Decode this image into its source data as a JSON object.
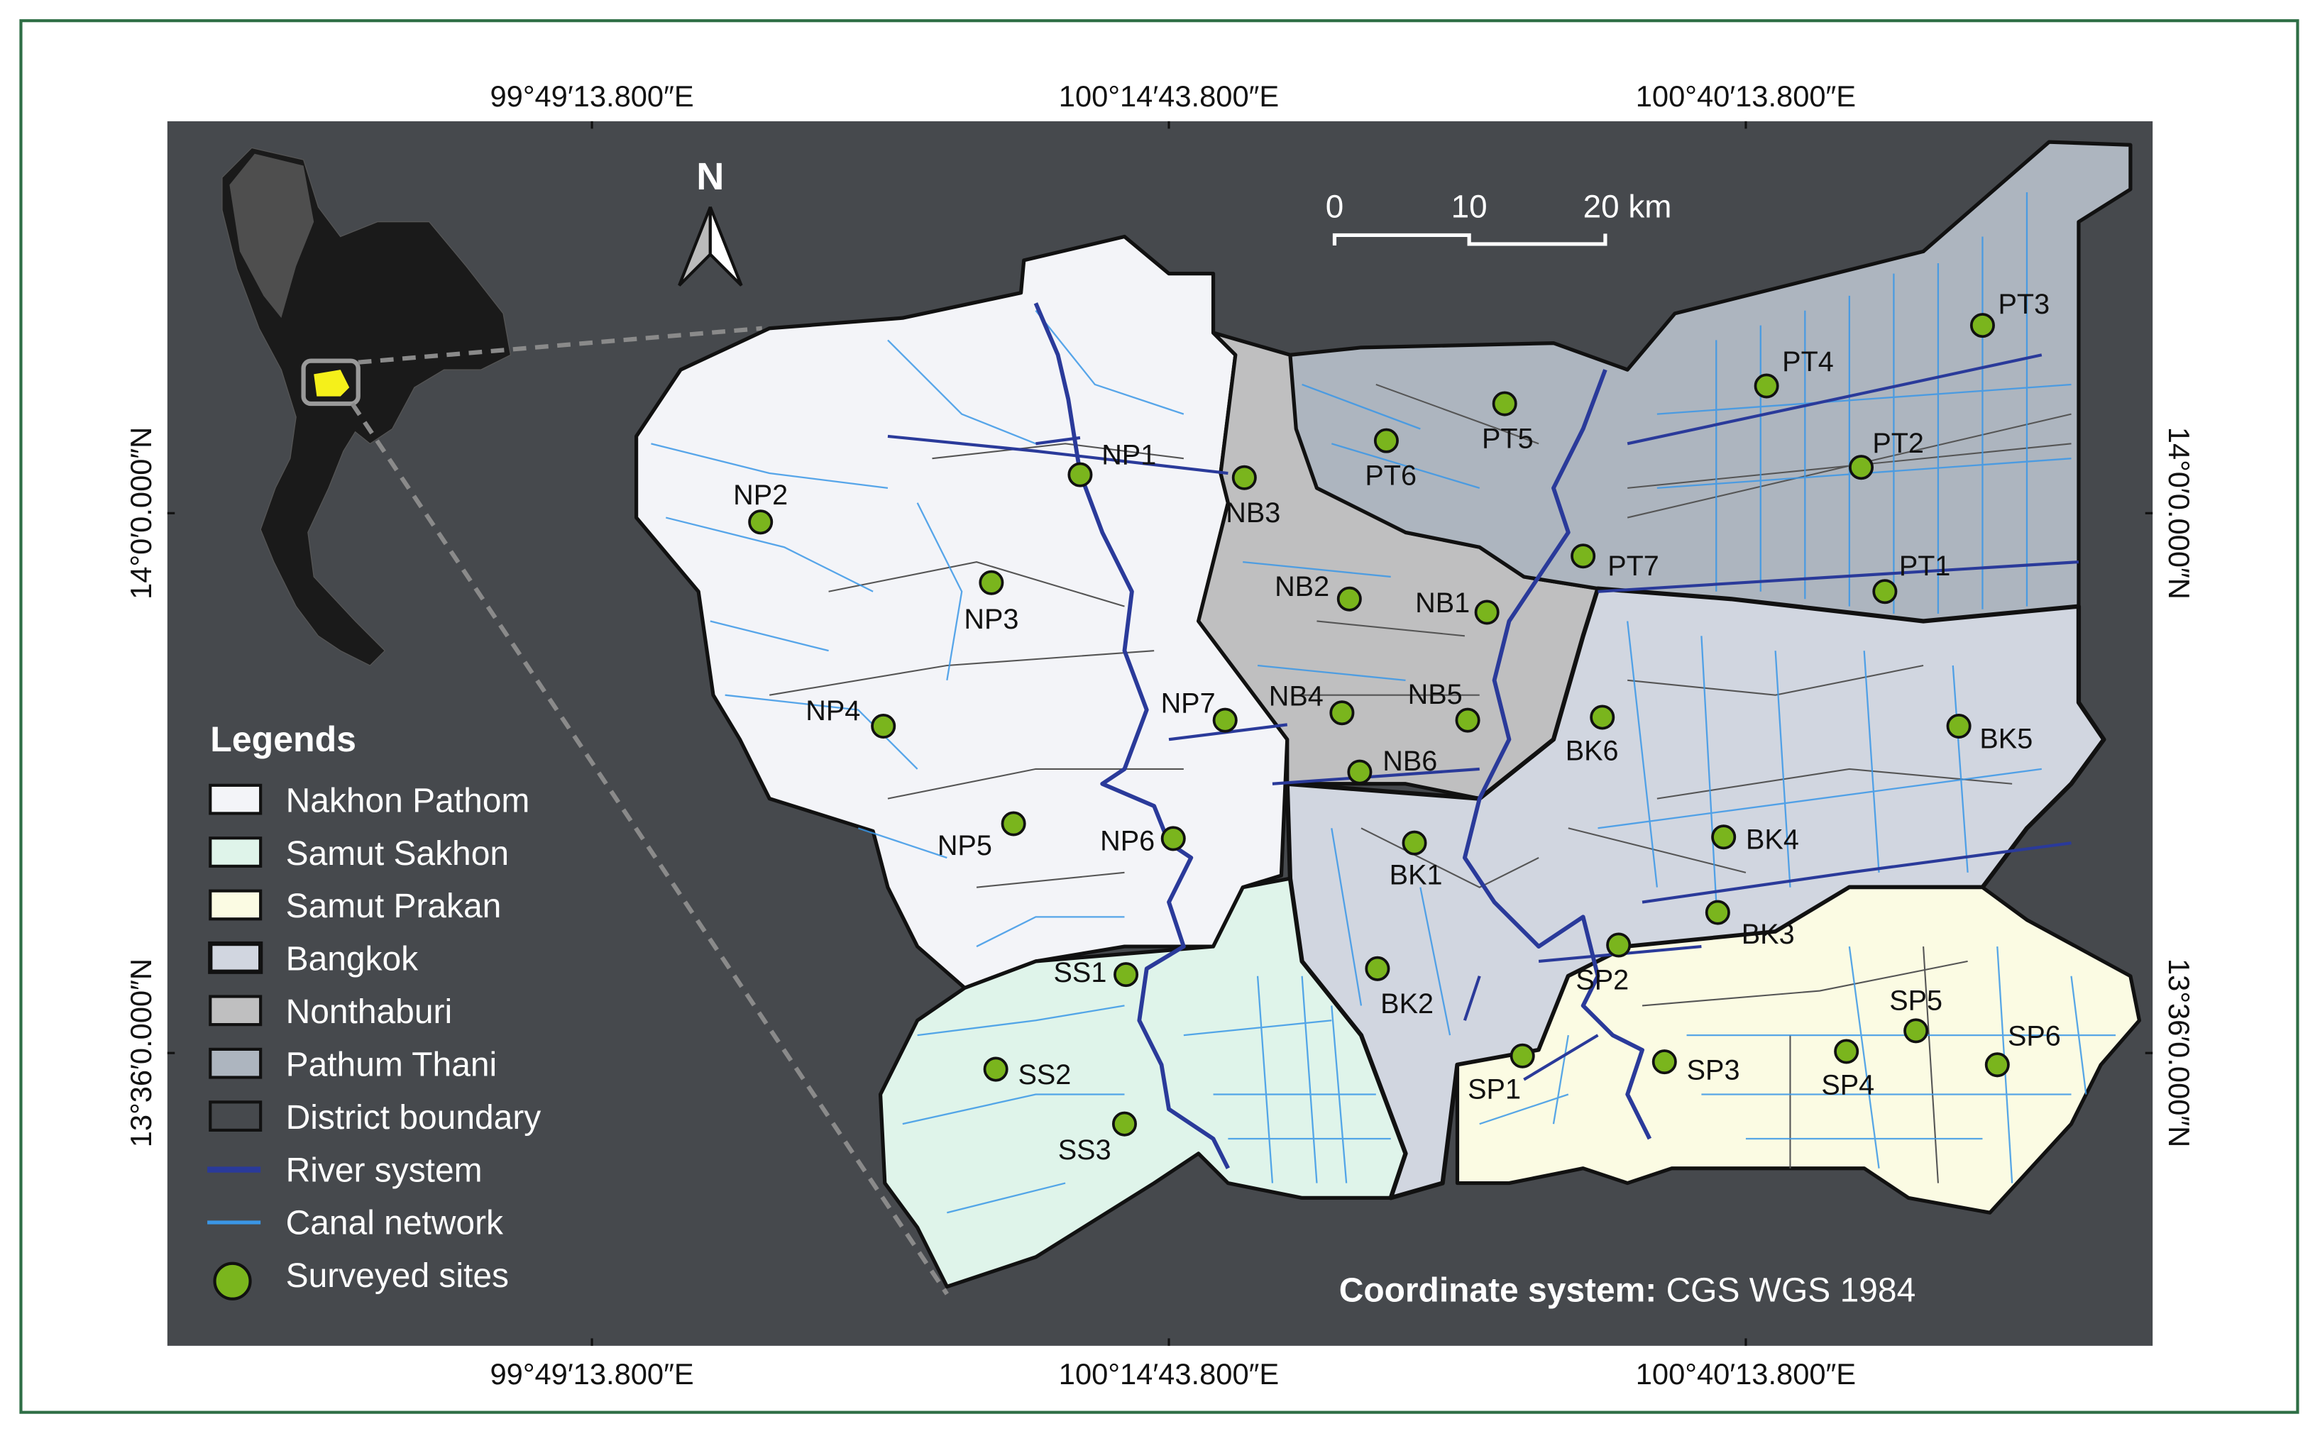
{
  "graticule": {
    "top": [
      "99°49′13.800″E",
      "100°14′43.800″E",
      "100°40′13.800″E"
    ],
    "bottom": [
      "99°49′13.800″E",
      "100°14′43.800″E",
      "100°40′13.800″E"
    ],
    "left": [
      "14°0′0.000″N",
      "13°36′0.000″N"
    ],
    "right": [
      "14°0′0.000″N",
      "13°36′0.000″N"
    ]
  },
  "north_arrow": {
    "label": "N"
  },
  "scale_bar": {
    "labels": [
      "0",
      "10",
      "20 km"
    ]
  },
  "legend": {
    "title": "Legends",
    "items": [
      {
        "label": "Nakhon Pathom",
        "type": "fill",
        "color": "#f3f4f8"
      },
      {
        "label": "Samut Sakhon",
        "type": "fill",
        "color": "#dff4ea"
      },
      {
        "label": "Samut Prakan",
        "type": "fill",
        "color": "#fbfbe3"
      },
      {
        "label": "Bangkok",
        "type": "fill",
        "color": "#d1d6e0"
      },
      {
        "label": "Nonthaburi",
        "type": "fill",
        "color": "#bfbfc0"
      },
      {
        "label": "Pathum Thani",
        "type": "fill",
        "color": "#adb5bf"
      },
      {
        "label": "District boundary",
        "type": "outline",
        "color": "#46494d"
      },
      {
        "label": "River system",
        "type": "line",
        "color": "#2a3a9a"
      },
      {
        "label": "Canal network",
        "type": "line",
        "color": "#3a96e6"
      },
      {
        "label": "Surveyed sites",
        "type": "point",
        "color": "#7ab51d"
      }
    ]
  },
  "sites": [
    "NP1",
    "NP2",
    "NP3",
    "NP4",
    "NP5",
    "NP6",
    "NP7",
    "NB1",
    "NB2",
    "NB3",
    "NB4",
    "NB5",
    "NB6",
    "PT1",
    "PT2",
    "PT3",
    "PT4",
    "PT5",
    "PT6",
    "PT7",
    "BK1",
    "BK2",
    "BK3",
    "BK4",
    "BK5",
    "BK6",
    "SS1",
    "SS2",
    "SS3",
    "SP1",
    "SP2",
    "SP3",
    "SP4",
    "SP5",
    "SP6"
  ],
  "coordinate_system": {
    "label": "Coordinate system:",
    "value": " CGS WGS 1984"
  },
  "colors": {
    "background": "#46494d",
    "frame": "#2e6e45",
    "site": "#7ab51d",
    "river": "#2a3a9a",
    "canal": "#3a96e6",
    "inset_highlight": "#f5f01a"
  }
}
